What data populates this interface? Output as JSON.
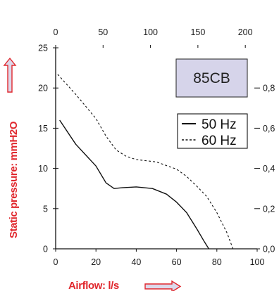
{
  "chart_data": {
    "type": "line",
    "model_label": "85CB",
    "xlabel": "Airflow: l/s",
    "ylabel": "Static pressure: mmH2O",
    "x_bottom": {
      "range": [
        0,
        100
      ],
      "ticks": [
        "0",
        "20",
        "40",
        "60",
        "80",
        "100"
      ]
    },
    "x_top": {
      "range": [
        0,
        212.5
      ],
      "ticks": [
        "0",
        "50",
        "100",
        "150",
        "200"
      ]
    },
    "y_left": {
      "range": [
        0,
        25
      ],
      "ticks": [
        "0",
        "5",
        "10",
        "15",
        "20",
        "25"
      ]
    },
    "y_right": {
      "range": [
        0,
        1.0
      ],
      "ticks": [
        "0,0",
        "0,2",
        "0,4",
        "0,6",
        "0,8"
      ]
    },
    "legend_position": "right",
    "grid": false,
    "colors": {
      "axis": "#111111",
      "label": "#e0282e",
      "arrow_fill": "#dcd8ea",
      "model_box": "#d6d4ea"
    },
    "series": [
      {
        "name": "50 Hz",
        "style": "solid",
        "x": [
          2,
          10,
          20,
          25,
          29,
          33,
          40,
          48,
          55,
          60,
          65,
          70,
          74,
          76
        ],
        "y": [
          16,
          13,
          10.3,
          8.2,
          7.5,
          7.6,
          7.7,
          7.5,
          6.8,
          5.8,
          4.5,
          2.5,
          0.8,
          0
        ]
      },
      {
        "name": "60 Hz",
        "style": "dashed",
        "x": [
          1,
          10,
          20,
          25,
          30,
          35,
          40,
          50,
          60,
          65,
          70,
          75,
          80,
          85,
          88
        ],
        "y": [
          21.7,
          19.2,
          16.2,
          14,
          12.3,
          11.5,
          11.1,
          10.8,
          9.9,
          9,
          7.8,
          6.5,
          4.5,
          2,
          0
        ]
      }
    ]
  }
}
